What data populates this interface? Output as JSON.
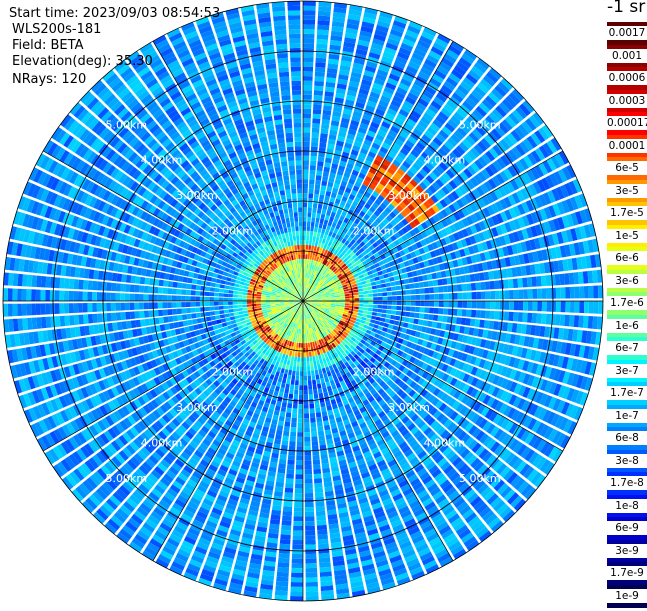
{
  "header": {
    "start_time": "Start time: 2023/09/03 08:54:53",
    "instrument": "WLS200s-181",
    "field": "Field: BETA",
    "elevation": "Elevation(deg): 35.30",
    "nrays": "NRays: 120"
  },
  "colorbar": {
    "unit": "-1 sr",
    "labels": [
      "0.0017",
      "0.001",
      "0.0006",
      "0.0003",
      "0.00017",
      "0.0001",
      "6e-5",
      "3e-5",
      "1.7e-5",
      "1e-5",
      "6e-6",
      "3e-6",
      "1.7e-6",
      "1e-6",
      "6e-7",
      "3e-7",
      "1.7e-7",
      "1e-7",
      "6e-8",
      "3e-8",
      "1.7e-8",
      "1e-8",
      "6e-9",
      "3e-9",
      "1.7e-9",
      "1e-9"
    ],
    "colors": [
      "#5c0000",
      "#8b0000",
      "#b00000",
      "#d40000",
      "#ff0000",
      "#ff3300",
      "#ff6a00",
      "#ff9900",
      "#ffc400",
      "#ffee00",
      "#e4ff1a",
      "#bbff44",
      "#8fff6f",
      "#5effa0",
      "#2effd0",
      "#00f4ff",
      "#00d0ff",
      "#00a8ff",
      "#0080ff",
      "#0058ff",
      "#0030ff",
      "#0010ee",
      "#0000c8",
      "#0000a0",
      "#00007a",
      "#000050"
    ]
  },
  "chart_data": {
    "type": "heatmap",
    "projection": "polar PPI scan",
    "field": "BETA",
    "elevation_deg": 35.3,
    "n_rays": 120,
    "range_rings_km": [
      1,
      2,
      3,
      4,
      5,
      6
    ],
    "ring_labels": [
      "2.00km",
      "3.00km",
      "4.00km",
      "5.00km"
    ],
    "max_range_km": 6.0,
    "colorbar_range": [
      1e-09,
      0.0017
    ],
    "description_values": {
      "near_field_0_to_1km": "1e-7 to 3e-6",
      "ring_at_about_1km": "6e-5 to 0.0006",
      "far_field_1_to_6km": "1e-8 to 3e-7",
      "patch_northeast_3km": "3e-5 to 0.0001"
    }
  }
}
